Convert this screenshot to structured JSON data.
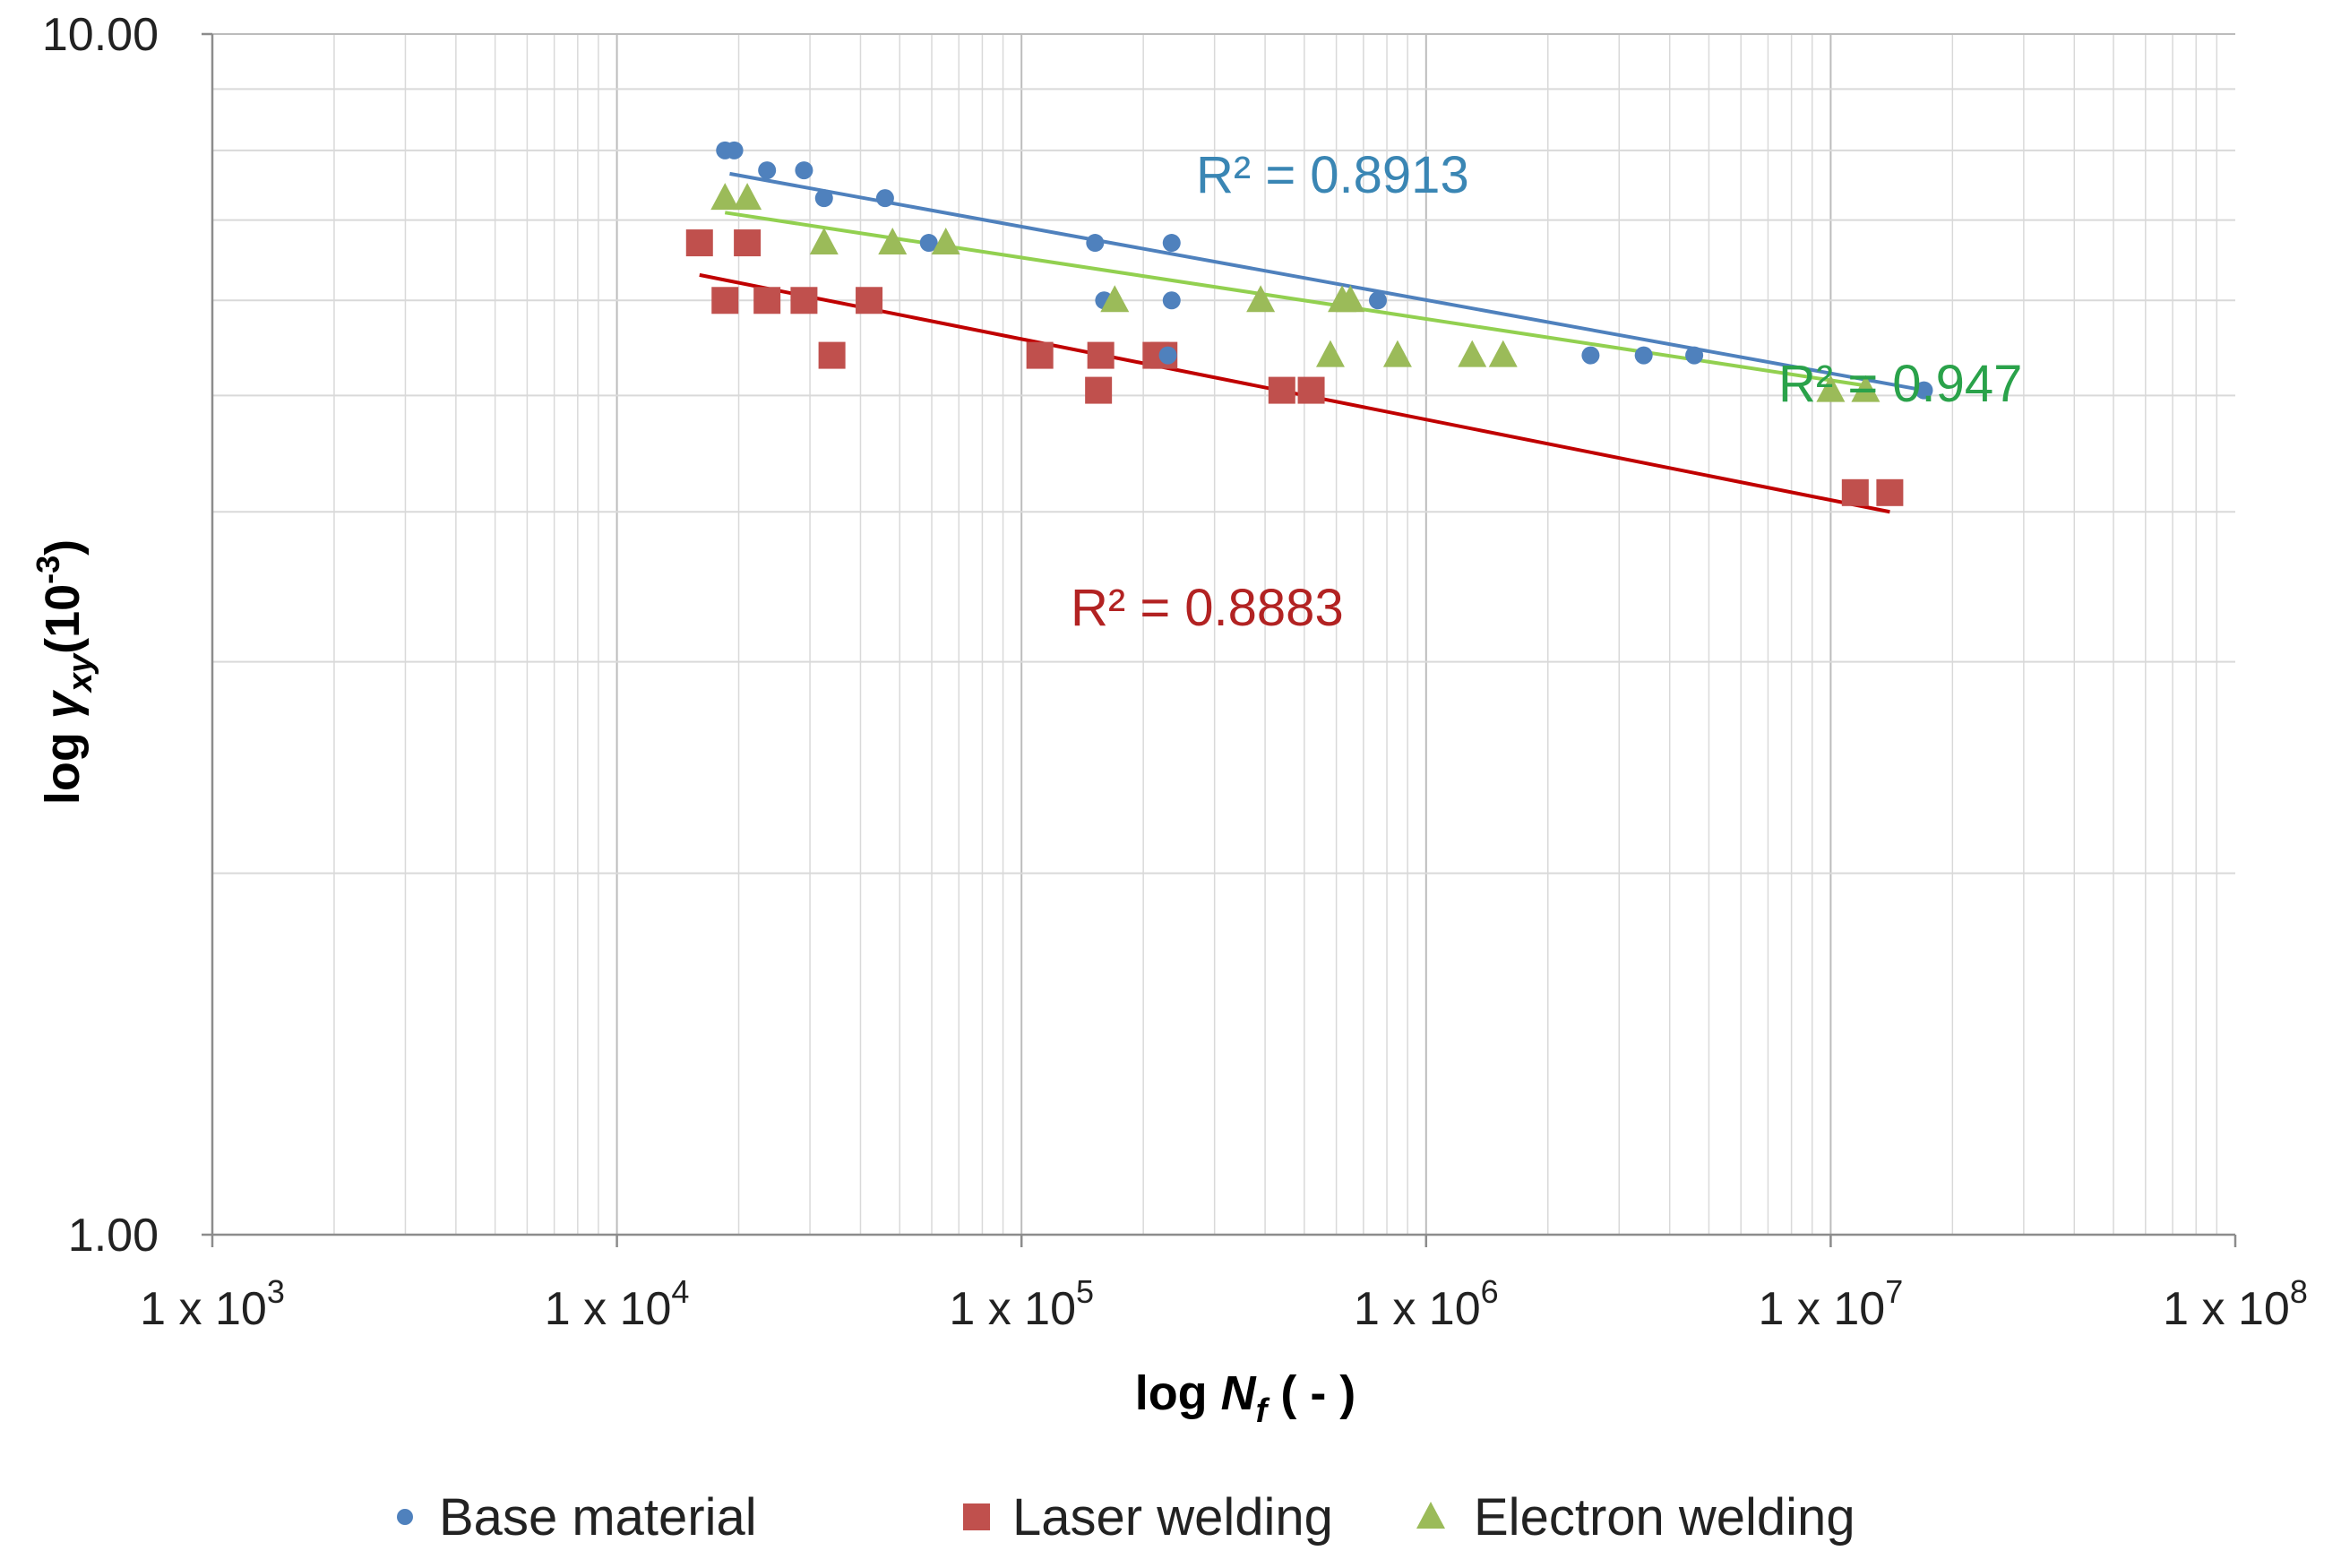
{
  "chart_data": {
    "type": "scatter",
    "x_scale": "log",
    "y_scale": "log",
    "xlabel": {
      "prefix": "log ",
      "symbol": "N",
      "subscript": "f",
      "suffix": " ( - )"
    },
    "ylabel": {
      "prefix": "log ",
      "symbol": "γ",
      "subscript": "xy",
      "suffix": "(10",
      "exponent": "-3",
      "close": ")"
    },
    "xlim": [
      1000,
      100000000
    ],
    "ylim": [
      1.0,
      10.0
    ],
    "x_ticks": [
      {
        "value": 1000,
        "label": "1 x 10",
        "exp": "3"
      },
      {
        "value": 10000,
        "label": "1 x 10",
        "exp": "4"
      },
      {
        "value": 100000,
        "label": "1 x 10",
        "exp": "5"
      },
      {
        "value": 1000000,
        "label": "1 x 10",
        "exp": "6"
      },
      {
        "value": 10000000,
        "label": "1 x 10",
        "exp": "7"
      },
      {
        "value": 100000000,
        "label": "1 x 10",
        "exp": "8"
      }
    ],
    "y_ticks": [
      {
        "value": 1.0,
        "label": "1.00"
      },
      {
        "value": 10.0,
        "label": "10.00"
      }
    ],
    "grid": true,
    "legend_position": "bottom",
    "series": [
      {
        "name": "Base material",
        "marker": "circle",
        "color": "#4f81bd",
        "trend_color": "#4f81bd",
        "r2_label": "R² = 0.8913",
        "r2_color": "#3a86b4",
        "trend": {
          "x": [
            19000,
            17000000
          ],
          "y": [
            7.65,
            5.05
          ]
        },
        "x": [
          18500,
          19500,
          23500,
          29000,
          32500,
          46000,
          59000,
          152000,
          235000,
          160000,
          235000,
          230000,
          760000,
          2550000,
          3450000,
          4600000,
          17000000
        ],
        "y": [
          8.0,
          8.0,
          7.7,
          7.7,
          7.3,
          7.3,
          6.7,
          6.7,
          6.7,
          6.0,
          6.0,
          5.4,
          6.0,
          5.4,
          5.4,
          5.4,
          5.05
        ]
      },
      {
        "name": "Laser welding",
        "marker": "square",
        "color": "#c0504d",
        "trend_color": "#c00000",
        "r2_label": "R² = 0.8883",
        "r2_color": "#b22222",
        "trend": {
          "x": [
            16000,
            14000000
          ],
          "y": [
            6.3,
            4.0
          ]
        },
        "x": [
          16000,
          18500,
          21000,
          23500,
          29000,
          34000,
          42000,
          111000,
          157000,
          215000,
          225000,
          155000,
          440000,
          520000,
          11500000,
          14000000
        ],
        "y": [
          6.7,
          6.0,
          6.7,
          6.0,
          6.0,
          5.4,
          6.0,
          5.4,
          5.4,
          5.4,
          5.4,
          5.05,
          5.05,
          5.05,
          4.15,
          4.15
        ]
      },
      {
        "name": "Electron welding",
        "marker": "triangle",
        "color": "#9bbb59",
        "trend_color": "#92d050",
        "r2_label": "R² = 0.947",
        "r2_color": "#2aa24a",
        "trend": {
          "x": [
            18500,
            12000000
          ],
          "y": [
            7.1,
            5.1
          ]
        },
        "x": [
          18500,
          21000,
          32500,
          48000,
          65000,
          170000,
          390000,
          620000,
          650000,
          580000,
          850000,
          1300000,
          1550000,
          10000000,
          12200000
        ],
        "y": [
          7.3,
          7.3,
          6.7,
          6.7,
          6.7,
          6.0,
          6.0,
          6.0,
          6.0,
          5.4,
          5.4,
          5.4,
          5.4,
          5.05,
          5.05
        ]
      }
    ]
  }
}
